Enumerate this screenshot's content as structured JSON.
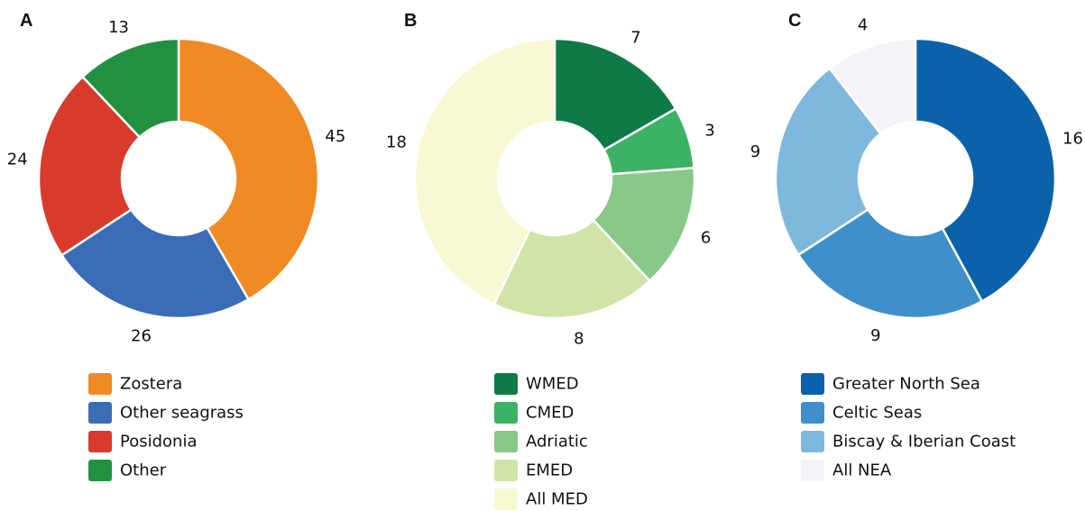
{
  "chart_data": [
    {
      "type": "pie",
      "panel": "A",
      "slices": [
        {
          "label": "Zostera",
          "value": 45,
          "color": "#F08A24"
        },
        {
          "label": "Other seagrass",
          "value": 26,
          "color": "#3A6DB5"
        },
        {
          "label": "Posidonia",
          "value": 24,
          "color": "#D83B2B"
        },
        {
          "label": "Other",
          "value": 13,
          "color": "#22913F"
        }
      ],
      "legend_order": [
        "Zostera",
        "Other seagrass",
        "Posidonia",
        "Other"
      ]
    },
    {
      "type": "pie",
      "panel": "B",
      "slices": [
        {
          "label": "WMED",
          "value": 7,
          "color": "#0E7A45"
        },
        {
          "label": "CMED",
          "value": 3,
          "color": "#3CB264"
        },
        {
          "label": "Adriatic",
          "value": 6,
          "color": "#88C888"
        },
        {
          "label": "EMED",
          "value": 8,
          "color": "#D0E4A8"
        },
        {
          "label": "All MED",
          "value": 18,
          "color": "#F8F9D2"
        }
      ],
      "legend_order": [
        "WMED",
        "CMED",
        "Adriatic",
        "EMED",
        "All MED"
      ]
    },
    {
      "type": "pie",
      "panel": "C",
      "slices": [
        {
          "label": "Greater North Sea",
          "value": 16,
          "color": "#0B62AB"
        },
        {
          "label": "Celtic Seas",
          "value": 9,
          "color": "#3E8FCA"
        },
        {
          "label": "Biscay & Iberian Coast",
          "value": 9,
          "color": "#7FB8DD"
        },
        {
          "label": "All NEA",
          "value": 4,
          "color": "#F4F4F8"
        }
      ],
      "legend_order": [
        "Greater North Sea",
        "Celtic Seas",
        "Biscay & Iberian Coast",
        "All NEA"
      ]
    }
  ]
}
